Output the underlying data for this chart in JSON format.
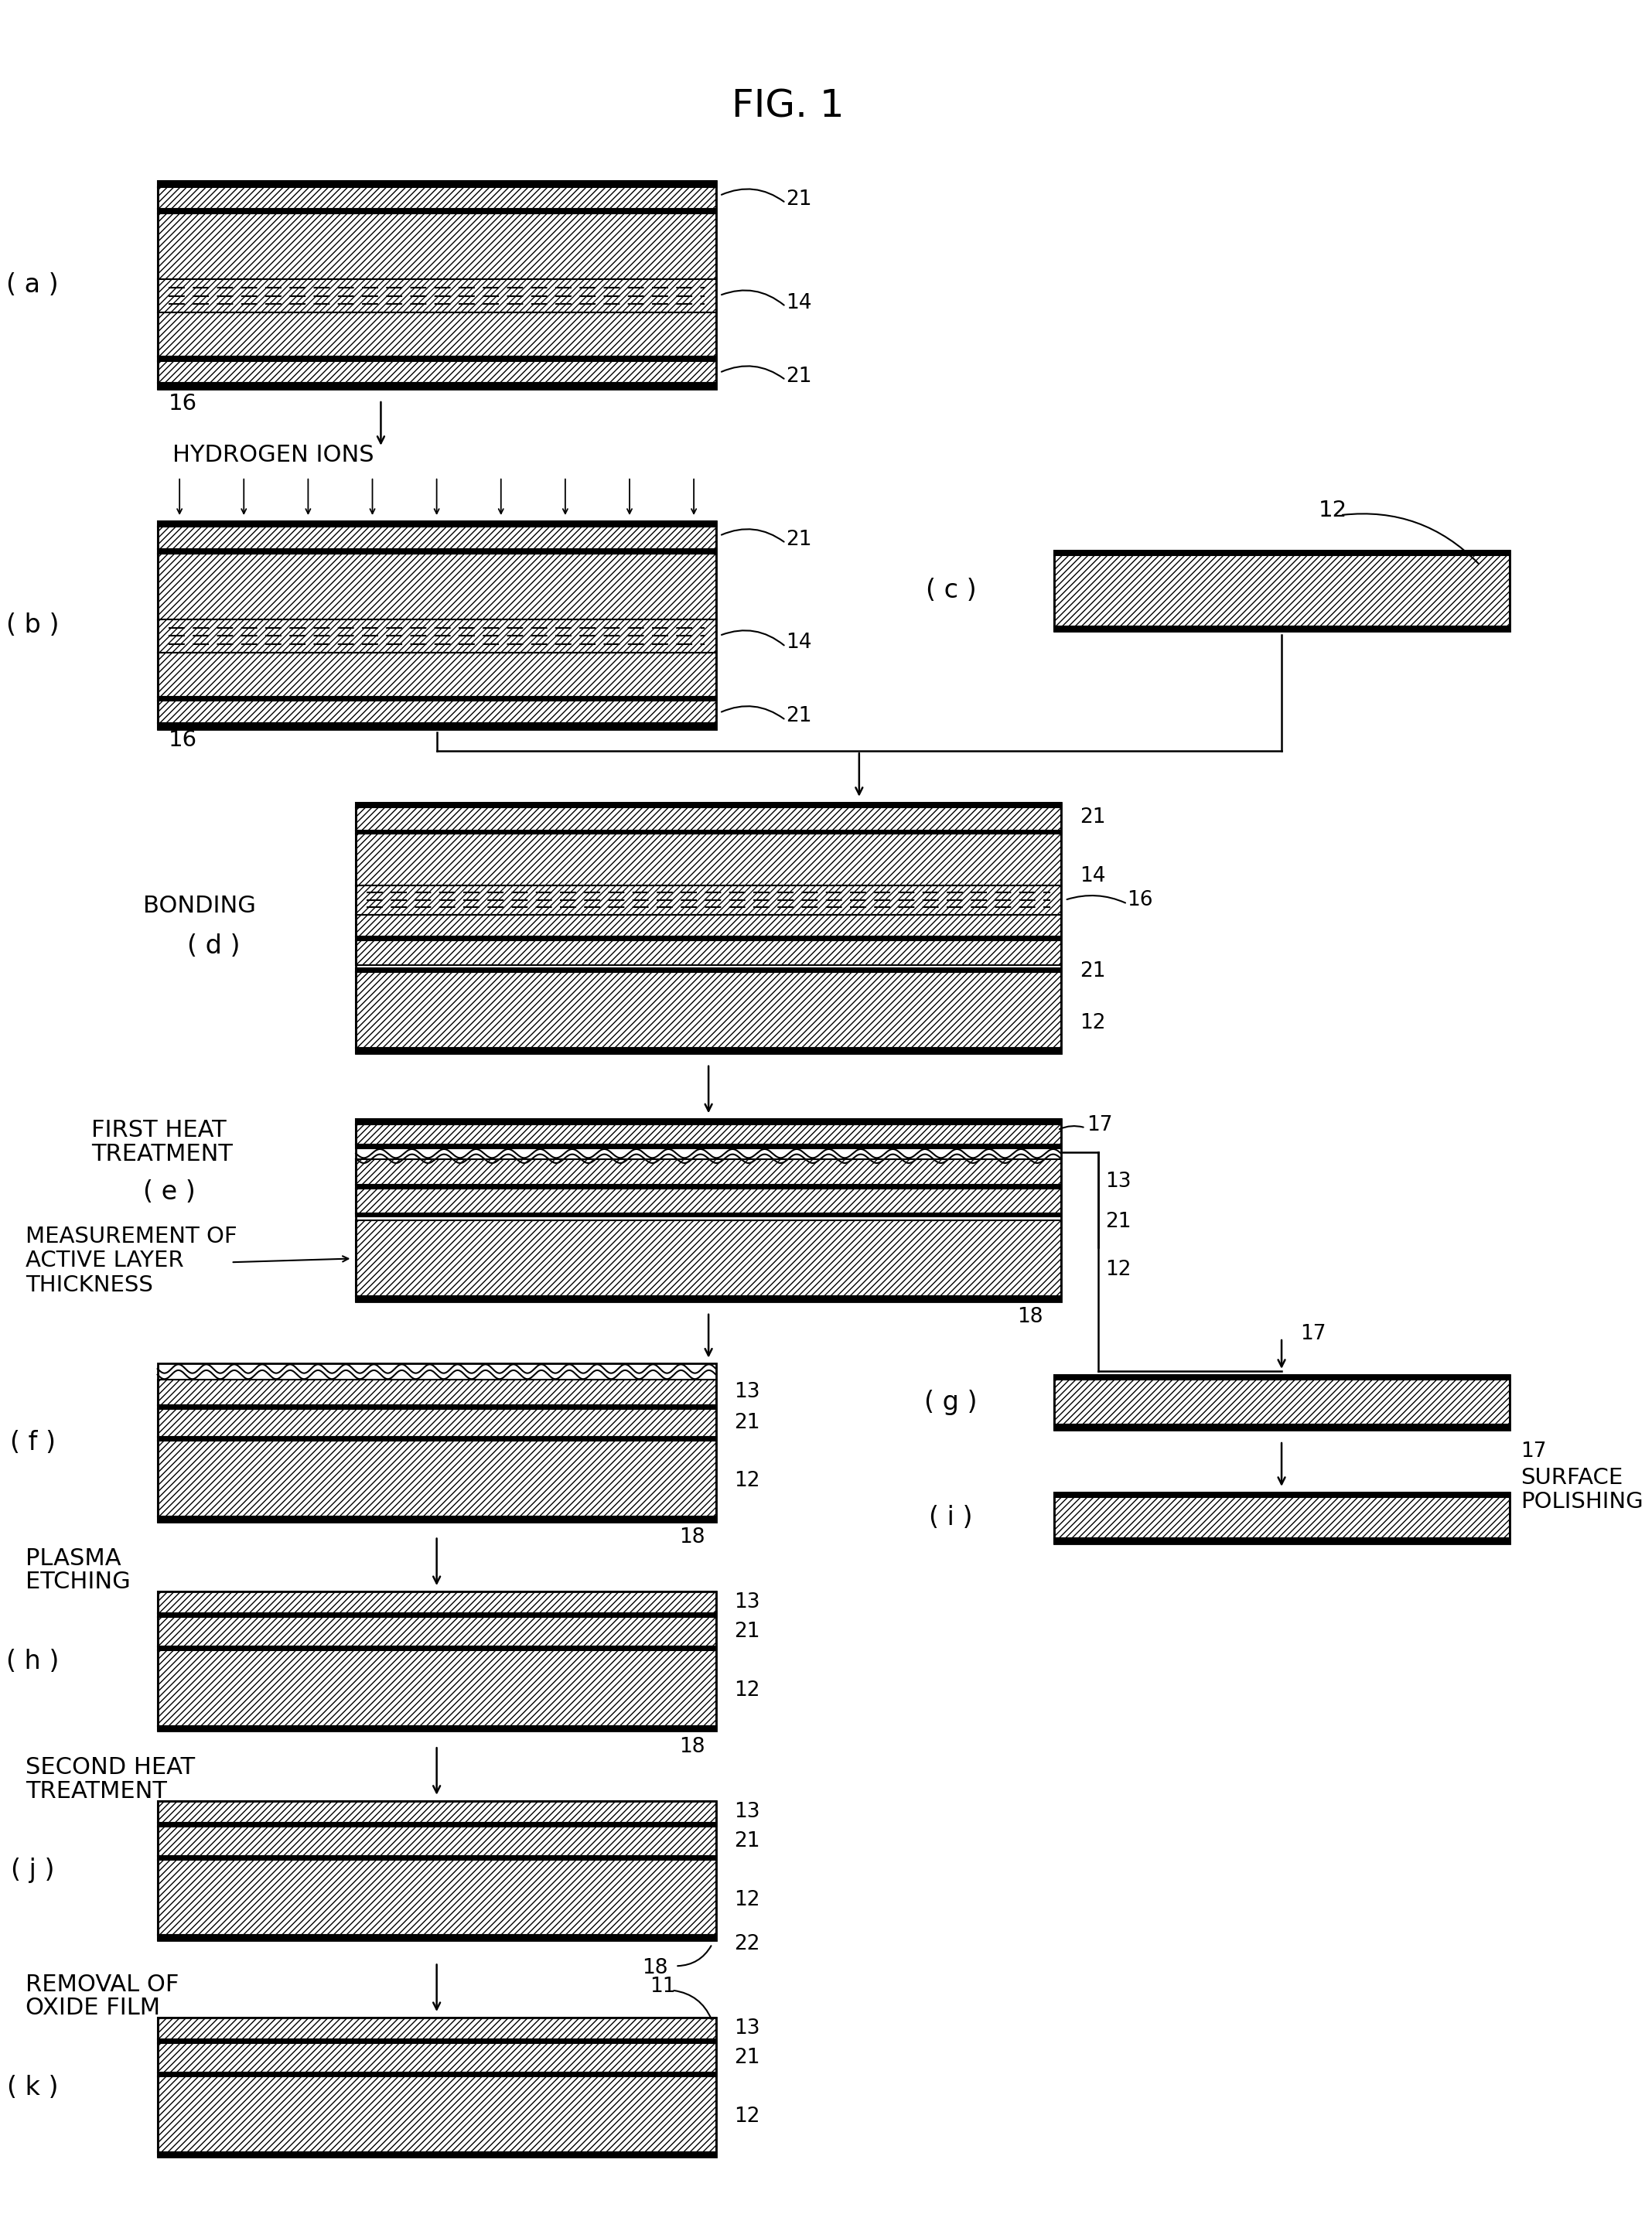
{
  "title": "FIG. 1",
  "bg_color": "#ffffff",
  "fig_width": 21.36,
  "fig_height": 28.94,
  "border_lw": 2.5,
  "hatch_density": "////",
  "hatch_si_body": "////",
  "hatch_oxide": "///",
  "panels": {
    "a": {
      "label": "( a )"
    },
    "b": {
      "label": "( b )"
    },
    "c": {
      "label": "( c )"
    },
    "d": {
      "label": "( d )"
    },
    "e": {
      "label": "( e )"
    },
    "f": {
      "label": "( f )"
    },
    "g": {
      "label": "( g )"
    },
    "h": {
      "label": "( h )"
    },
    "i": {
      "label": "( i )"
    },
    "j": {
      "label": "( j )"
    },
    "k": {
      "label": "( k )"
    }
  },
  "labels": {
    "bonding": "BONDING",
    "first_heat": [
      "FIRST HEAT",
      "TREATMENT"
    ],
    "measurement": [
      "MEASUREMENT OF",
      "ACTIVE LAYER",
      "THICKNESS"
    ],
    "plasma_etching": [
      "PLASMA",
      "ETCHING"
    ],
    "second_heat": [
      "SECOND HEAT",
      "TREATMENT"
    ],
    "removal": [
      "REMOVAL OF",
      "OXIDE FILM"
    ],
    "surface_polishing": [
      "SURFACE",
      "POLISHING"
    ],
    "hydrogen_ions": "HYDROGEN IONS"
  }
}
